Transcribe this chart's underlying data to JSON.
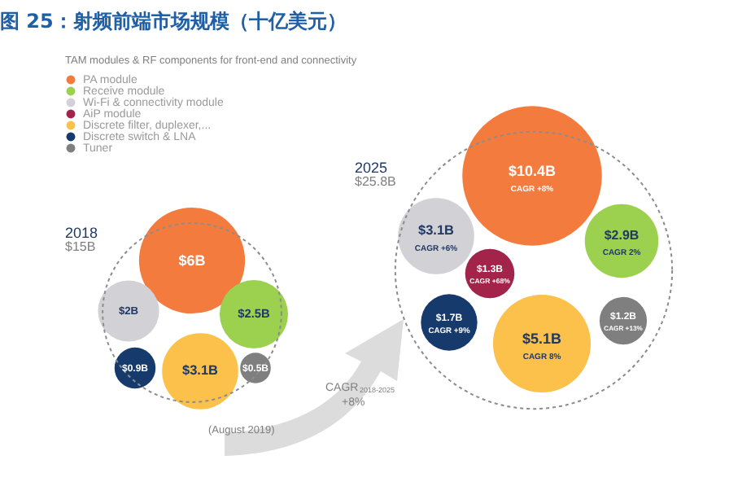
{
  "chart_data": {
    "type": "other",
    "title": "图 25：射频前端市场规模（十亿美元）",
    "legend_title": "TAM modules & RF components for front-end and connectivity",
    "legend": "top left",
    "categories": [
      "2018",
      "2025"
    ],
    "series": [
      {
        "name": "PA module",
        "color": "#f47b3e",
        "values": [
          6,
          10.4
        ],
        "value_labels": [
          "$6B",
          "$10.4B"
        ]
      },
      {
        "name": "Receive module",
        "color": "#9bd14f",
        "values": [
          2.5,
          2.9
        ],
        "value_labels": [
          "$2.5B",
          "$2.9B"
        ]
      },
      {
        "name": "Wi-Fi & connectivity module",
        "color": "#d2d2d6",
        "values": [
          2,
          3.1
        ],
        "value_labels": [
          "$2B",
          "$3.1B"
        ]
      },
      {
        "name": "AiP module",
        "color": "#a3244a",
        "values": [
          null,
          1.3
        ],
        "value_labels": [
          null,
          "$1.3B"
        ]
      },
      {
        "name": "Discrete filter, duplexer,...",
        "color": "#fbc14a",
        "values": [
          3.1,
          5.1
        ],
        "value_labels": [
          "$3.1B",
          "$5.1B"
        ]
      },
      {
        "name": "Discrete switch & LNA",
        "color": "#163a6b",
        "values": [
          0.9,
          1.7
        ],
        "value_labels": [
          "$0.9B",
          "$1.7B"
        ]
      },
      {
        "name": "Tuner",
        "color": "#7f7f7f",
        "values": [
          0.5,
          1.2
        ],
        "value_labels": [
          "$0.5B",
          "$1.2B"
        ]
      }
    ],
    "totals": [
      "$15B",
      "$25.8B"
    ],
    "annotations": [
      "CAGR +8%",
      "CAGR 2%",
      "CAGR +6%",
      "CAGR +68%",
      "CAGR 8%",
      "CAGR +9%",
      "CAGR +13%",
      "CAGR$_{2018-2025}$ +8%",
      "(August 2019)"
    ]
  }
}
